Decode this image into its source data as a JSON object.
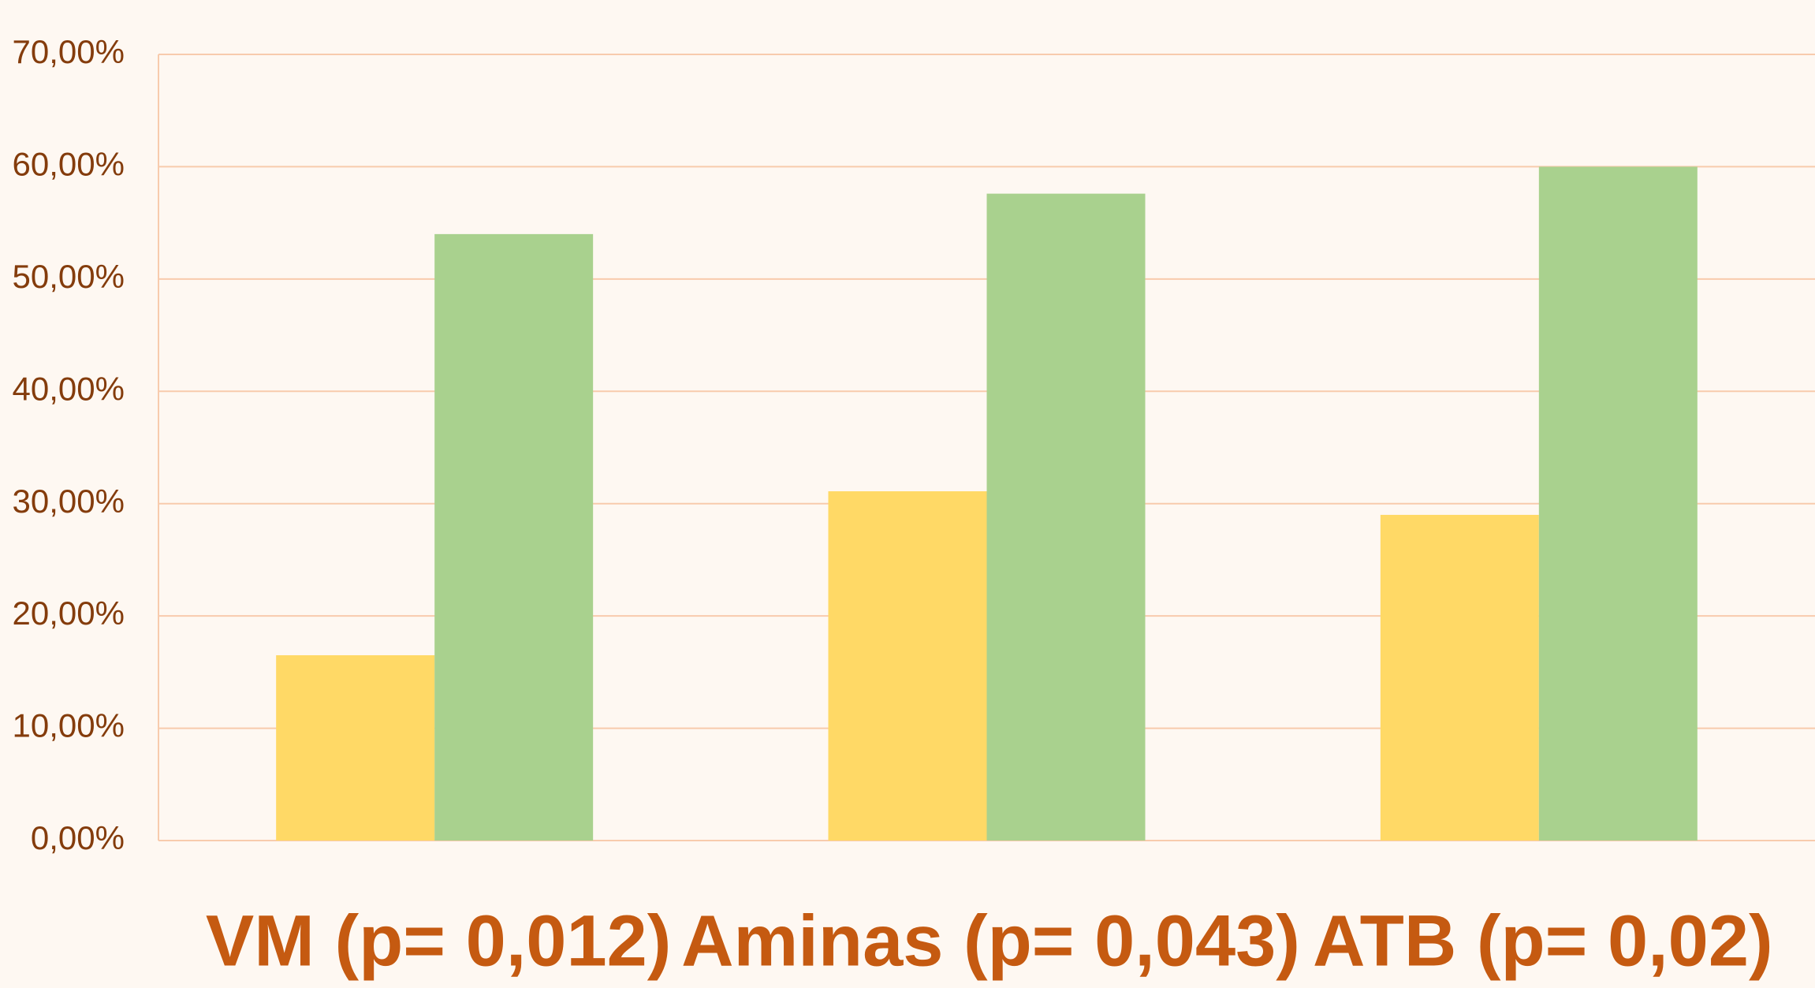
{
  "chart_data": {
    "type": "bar",
    "categories": [
      "VM (p= 0,012)",
      "Aminas (p= 0,043)",
      "ATB (p= 0,02)"
    ],
    "series": [
      {
        "color": "#FFD966",
        "values": [
          16.5,
          31.1,
          29.0
        ]
      },
      {
        "color": "#A9D18E",
        "values": [
          54.0,
          57.6,
          60.0
        ]
      }
    ],
    "ylim": [
      0,
      70
    ],
    "yticks": [
      {
        "value": 0,
        "label": "0,00%"
      },
      {
        "value": 10,
        "label": "10,00%"
      },
      {
        "value": 20,
        "label": "20,00%"
      },
      {
        "value": 30,
        "label": "30,00%"
      },
      {
        "value": 40,
        "label": "40,00%"
      },
      {
        "value": 50,
        "label": "50,00%"
      },
      {
        "value": 60,
        "label": "60,00%"
      },
      {
        "value": 70,
        "label": "70,00%"
      }
    ],
    "grid": true
  }
}
